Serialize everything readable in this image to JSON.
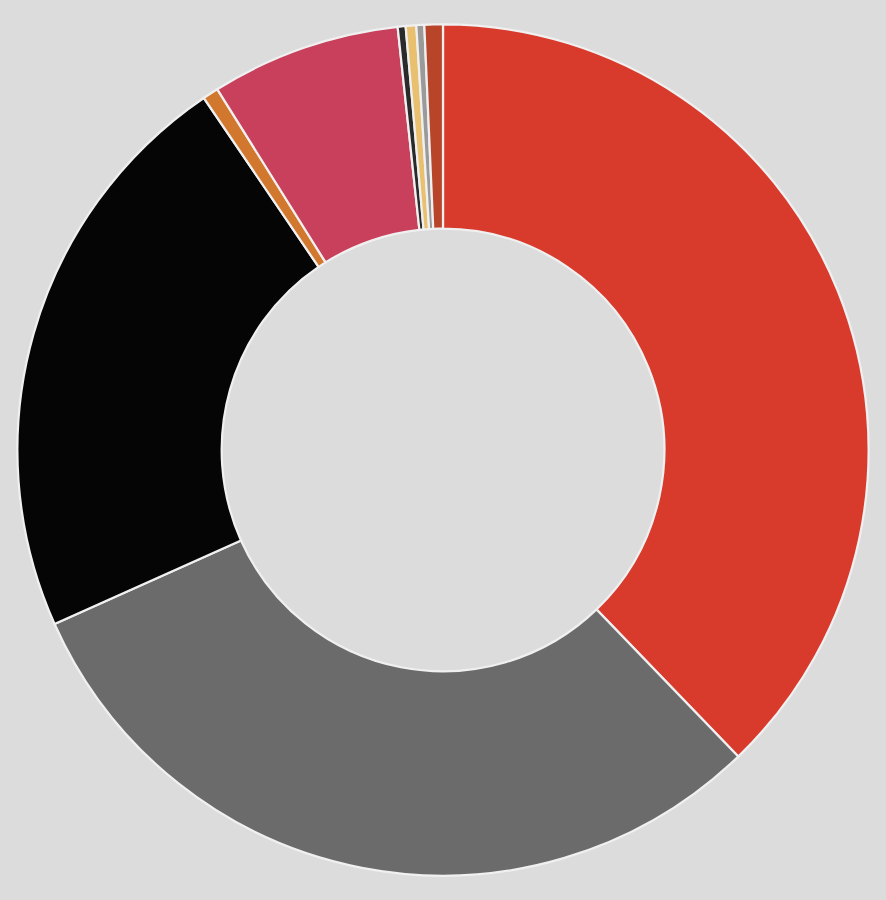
{
  "chart_data": {
    "type": "donut",
    "categories": [
      null,
      null,
      null,
      null,
      null,
      null,
      null,
      null,
      null
    ],
    "values": [
      37.8,
      30.5,
      22.2,
      0.6,
      7.2,
      0.3,
      0.4,
      0.3,
      0.7
    ],
    "colors": [
      "#d83a2c",
      "#6b6b6b",
      "#050505",
      "#d2782e",
      "#c8405c",
      "#2a2a2a",
      "#e8c070",
      "#9a9a9a",
      "#b8452a"
    ]
  }
}
